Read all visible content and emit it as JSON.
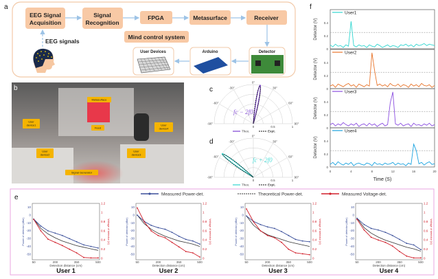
{
  "panel_labels": {
    "a": "a",
    "b": "b",
    "c": "c",
    "d": "d",
    "e": "e",
    "f": "f"
  },
  "panel_a": {
    "blocks": [
      "EEG Signal",
      "Acquisition",
      "Signal",
      "Recognition",
      "FPGA",
      "Metasurface",
      "Receiver",
      "Mind control  system"
    ],
    "eeg_label": "EEG signals",
    "bottom_blocks": [
      "User Devices",
      "Arduino",
      "Detector"
    ],
    "colors": {
      "block": "#f8c9a5",
      "arrow": "#9dc3e6",
      "frame": "#f2c9a8"
    }
  },
  "panel_b": {
    "tags": [
      "Metasurface",
      "User",
      "device1",
      "Feed",
      "User",
      "device4",
      "User",
      "device2",
      "User",
      "device3",
      "Signal Generator"
    ],
    "tag_color": "#f5b400"
  },
  "chart_data": [
    {
      "panel": "c",
      "type": "polar",
      "annotation": "fc − 2f0",
      "angle_ticks": [
        "-90°",
        "-60°",
        "-30°",
        "0°",
        "30°",
        "60°",
        "90°"
      ],
      "radial_ticks": [
        "0",
        "0.5",
        "1"
      ],
      "legend": [
        "Theo.",
        "Expt."
      ],
      "beam_angle_deg": 10,
      "beam_peak": 1,
      "colors": {
        "theo": "#7b3fd1",
        "expt": "#111111"
      }
    },
    {
      "panel": "d",
      "type": "polar",
      "annotation": "fc + 2f0",
      "angle_ticks": [
        "-90°",
        "-60°",
        "-30°",
        "0°",
        "30°",
        "60°",
        "90°"
      ],
      "radial_ticks": [
        "0",
        "0.5",
        "1"
      ],
      "legend": [
        "Theo.",
        "Expt."
      ],
      "beam_angle_deg": -53,
      "beam_peak": 1,
      "colors": {
        "theo": "#2fd6d0",
        "expt": "#111111"
      }
    },
    {
      "panel": "f",
      "type": "line",
      "xlabel": "Time (S)",
      "ylabel": "Detector (V)",
      "xlim": [
        0,
        20
      ],
      "ylim": [
        0,
        0.6
      ],
      "xticks": [
        "0",
        "4",
        "8",
        "12",
        "16",
        "20"
      ],
      "yticks": [
        "0",
        "0.2",
        "0.4"
      ],
      "threshold": 0.25,
      "x_step": 0.5,
      "series": [
        {
          "name": "User1",
          "color": "#2fd6d0",
          "values": [
            0.06,
            0.03,
            0.07,
            0.04,
            0.05,
            0.02,
            0.06,
            0.04,
            0.42,
            0.05,
            0.03,
            0.06,
            0.04,
            0.05,
            0.02,
            0.06,
            0.04,
            0.03,
            0.07,
            0.05,
            0.02,
            0.04,
            0.06,
            0.03,
            0.05,
            0.04,
            0.02,
            0.06,
            0.05,
            0.07,
            0.04,
            0.06,
            0.03,
            0.07,
            0.05,
            0.06,
            0.08,
            0.05,
            0.07,
            0.06,
            0.05
          ]
        },
        {
          "name": "User2",
          "color": "#e8742a",
          "values": [
            0.04,
            0.06,
            0.02,
            0.07,
            0.05,
            0.03,
            0.06,
            0.08,
            0.04,
            0.06,
            0.02,
            0.07,
            0.05,
            0.03,
            0.06,
            0.04,
            0.55,
            0.28,
            0.05,
            0.07,
            0.04,
            0.06,
            0.03,
            0.08,
            0.05,
            0.04,
            0.07,
            0.03,
            0.06,
            0.05,
            0.02,
            0.07,
            0.04,
            0.06,
            0.03,
            0.08,
            0.05,
            0.04,
            0.06,
            0.02,
            0.05
          ]
        },
        {
          "name": "User3",
          "color": "#8a4de0",
          "values": [
            0.05,
            0.07,
            0.03,
            0.06,
            0.04,
            0.08,
            0.05,
            0.03,
            0.06,
            0.04,
            0.07,
            0.02,
            0.05,
            0.06,
            0.03,
            0.07,
            0.04,
            0.06,
            0.02,
            0.05,
            0.07,
            0.03,
            0.05,
            0.38,
            0.55,
            0.06,
            0.04,
            0.07,
            0.03,
            0.05,
            0.06,
            0.02,
            0.07,
            0.04,
            0.05,
            0.03,
            0.06,
            0.04,
            0.07,
            0.03,
            0.05
          ]
        },
        {
          "name": "User4",
          "color": "#1aa3e0",
          "values": [
            0.04,
            0.07,
            0.03,
            0.08,
            0.05,
            0.03,
            0.06,
            0.04,
            0.07,
            0.02,
            0.05,
            0.06,
            0.04,
            0.03,
            0.06,
            0.05,
            0.02,
            0.07,
            0.04,
            0.05,
            0.03,
            0.06,
            0.04,
            0.05,
            0.07,
            0.03,
            0.06,
            0.04,
            0.05,
            0.02,
            0.06,
            0.04,
            0.35,
            0.25,
            0.05,
            0.07,
            0.03,
            0.06,
            0.08,
            0.04,
            0.05
          ]
        }
      ]
    },
    {
      "panel": "e",
      "type": "line",
      "legend": [
        "Measured Power-det.",
        "Theoretical Power-det.",
        "Measured Voltage-det."
      ],
      "xlabel": "Detection distance (cm)",
      "ylabel_left": "Power of detector (dBm)",
      "ylabel_right": "Voltage of detector (V)",
      "xticks": [
        50,
        200,
        350,
        500
      ],
      "yticks_left": [
        10,
        0,
        -10,
        -20,
        -30,
        -40,
        -50
      ],
      "yticks_right": [
        "0",
        "0.2",
        "0.4",
        "0.6",
        "0.8",
        "1",
        "1.2"
      ],
      "xlim": [
        40,
        510
      ],
      "ylim_left": [
        -57,
        15
      ],
      "ylim_right": [
        -0.03,
        1.2
      ],
      "x": [
        50,
        100,
        150,
        200,
        250,
        300,
        350,
        400,
        450,
        500
      ],
      "colors": {
        "measured_power": "#3a4f9a",
        "theoretical_power": "#333333",
        "measured_voltage": "#d11f2a",
        "frame": "#e9a6e0"
      },
      "users": [
        {
          "title": "User 1",
          "measured_power": [
            -5,
            -14,
            -20,
            -23,
            -26,
            -30,
            -34,
            -38,
            -40,
            -42
          ],
          "theoretical_power": [
            -5,
            -17,
            -24,
            -29,
            -33,
            -36,
            -39,
            -41,
            -43,
            -45
          ],
          "measured_voltage": [
            0.85,
            0.6,
            0.42,
            0.35,
            0.28,
            0.2,
            0.12,
            0.02,
            0.01,
            0.01
          ]
        },
        {
          "title": "User 2",
          "measured_power": [
            0,
            -8,
            -13,
            -16,
            -18,
            -22,
            -27,
            -31,
            -33,
            -37
          ],
          "theoretical_power": [
            0,
            -11,
            -18,
            -23,
            -27,
            -30,
            -33,
            -35,
            -37,
            -40
          ],
          "measured_voltage": [
            1.1,
            0.8,
            0.6,
            0.5,
            0.45,
            0.35,
            0.25,
            0.15,
            0.12,
            0.03
          ]
        },
        {
          "title": "User 3",
          "measured_power": [
            -1,
            -8,
            -12,
            -15,
            -17,
            -21,
            -26,
            -31,
            -33,
            -34
          ],
          "theoretical_power": [
            -1,
            -13,
            -20,
            -25,
            -28,
            -31,
            -34,
            -36,
            -38,
            -40
          ],
          "measured_voltage": [
            1.08,
            0.8,
            0.6,
            0.5,
            0.45,
            0.35,
            0.2,
            0.12,
            0.1,
            0.08
          ]
        },
        {
          "title": "User 4",
          "measured_power": [
            -4,
            -12,
            -17,
            -19,
            -22,
            -26,
            -31,
            -36,
            -38,
            -44
          ],
          "theoretical_power": [
            -4,
            -16,
            -23,
            -28,
            -32,
            -35,
            -38,
            -41,
            -43,
            -46
          ],
          "measured_voltage": [
            0.85,
            0.62,
            0.46,
            0.4,
            0.35,
            0.27,
            0.15,
            0.05,
            0.01,
            0.01
          ]
        }
      ]
    }
  ]
}
